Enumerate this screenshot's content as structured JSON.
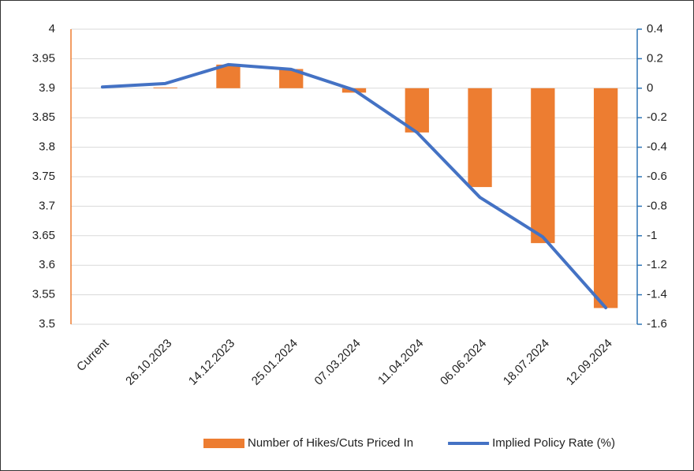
{
  "chart_data": {
    "type": "combo",
    "categories": [
      "Current",
      "26.10.2023",
      "14.12.2023",
      "25.01.2024",
      "07.03.2024",
      "11.04.2024",
      "06.06.2024",
      "18.07.2024",
      "12.09.2024"
    ],
    "series": [
      {
        "name": "Number of Hikes/Cuts Priced In",
        "type": "bar",
        "axis": "y2",
        "color": "#ed7d31",
        "values": [
          0,
          0.005,
          0.16,
          0.13,
          -0.03,
          -0.3,
          -0.67,
          -1.05,
          -1.49
        ]
      },
      {
        "name": "Implied Policy Rate (%)",
        "type": "line",
        "color": "#4472c4",
        "values": [
          3.902,
          3.908,
          3.94,
          3.932,
          3.897,
          3.825,
          3.715,
          3.648,
          3.528
        ]
      }
    ],
    "ylim": [
      3.5,
      4
    ],
    "yticks": [
      3.5,
      3.55,
      3.6,
      3.65,
      3.7,
      3.75,
      3.8,
      3.85,
      3.9,
      3.95,
      4
    ],
    "y2lim": [
      -1.6,
      0.4
    ],
    "y2ticks": [
      -1.6,
      -1.4,
      -1.2,
      -1,
      -0.8,
      -0.6,
      -0.4,
      -0.2,
      0,
      0.2,
      0.4
    ],
    "grid": true,
    "legend": "bottom"
  }
}
